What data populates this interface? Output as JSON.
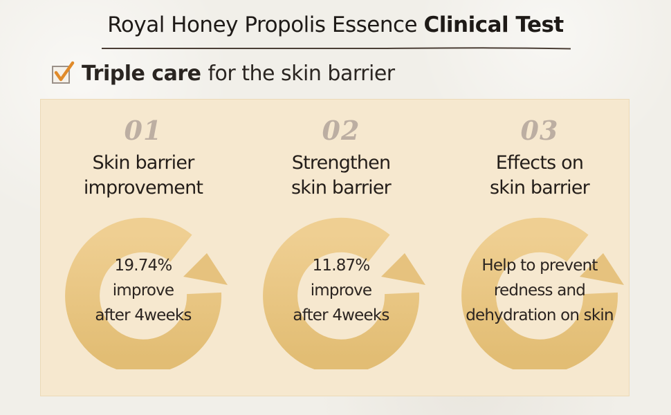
{
  "header": {
    "title_regular": "Royal Honey Propolis Essence",
    "title_bold": "Clinical Test"
  },
  "subheading": {
    "bold": "Triple care",
    "regular": "for the skin barrier",
    "icon": "checkbox-checked-icon"
  },
  "colors": {
    "check_accent": "#e08a2a",
    "ring_gold": "#e6c27e",
    "panel_bg": "#f6e8cf",
    "number_gray": "#bcaea2"
  },
  "cards": [
    {
      "number": "01",
      "heading_lines": [
        "Skin barrier",
        "improvement"
      ],
      "ring_lines": [
        "19.74%",
        "improve",
        "after 4weeks"
      ]
    },
    {
      "number": "02",
      "heading_lines": [
        "Strengthen",
        "skin barrier"
      ],
      "ring_lines": [
        "11.87%",
        "improve",
        "after 4weeks"
      ]
    },
    {
      "number": "03",
      "heading_lines": [
        "Effects on",
        "skin barrier"
      ],
      "ring_lines": [
        "Help to prevent",
        "redness and",
        "dehydration on skin"
      ]
    }
  ]
}
